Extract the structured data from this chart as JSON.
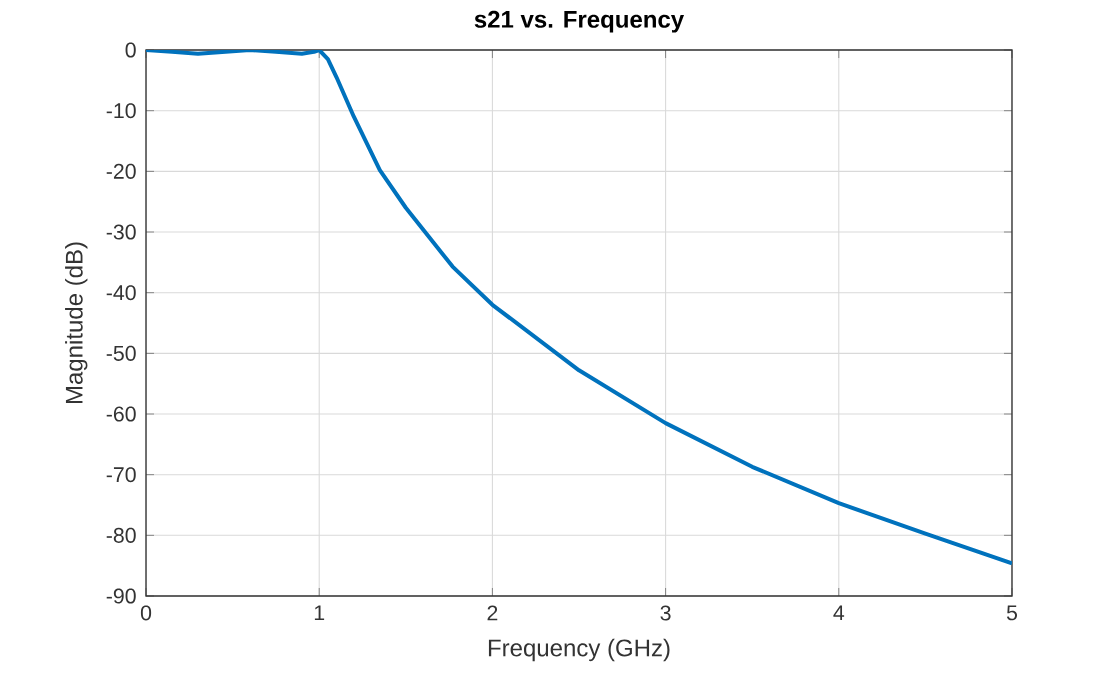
{
  "chart_data": {
    "type": "line",
    "title": "s21 vs. Frequency",
    "xlabel": "Frequency (GHz)",
    "ylabel": "Magnitude (dB)",
    "series": [
      {
        "color": "#0072bd",
        "x": [
          0,
          0.15,
          0.3,
          0.45,
          0.6,
          0.75,
          0.9,
          0.97,
          1.0,
          1.05,
          1.1,
          1.2,
          1.35,
          1.5,
          1.77,
          2,
          2.5,
          3,
          3.5,
          4,
          4.5,
          5
        ],
        "values": [
          0,
          -0.3,
          -0.6,
          -0.3,
          0,
          -0.3,
          -0.6,
          -0.3,
          0,
          -1.5,
          -4.5,
          -11,
          -19.8,
          -26,
          -35.7,
          -42,
          -52.8,
          -61.5,
          -68.7,
          -74.7,
          -79.7,
          -84.6
        ]
      }
    ],
    "xlim": [
      0,
      5
    ],
    "ylim": [
      -90,
      0
    ],
    "xticks": [
      0,
      1,
      2,
      3,
      4,
      5
    ],
    "yticks": [
      -90,
      -80,
      -70,
      -60,
      -50,
      -40,
      -30,
      -20,
      -10,
      0
    ],
    "grid": true,
    "legend": false,
    "marker": "none",
    "line_style": "solid"
  }
}
